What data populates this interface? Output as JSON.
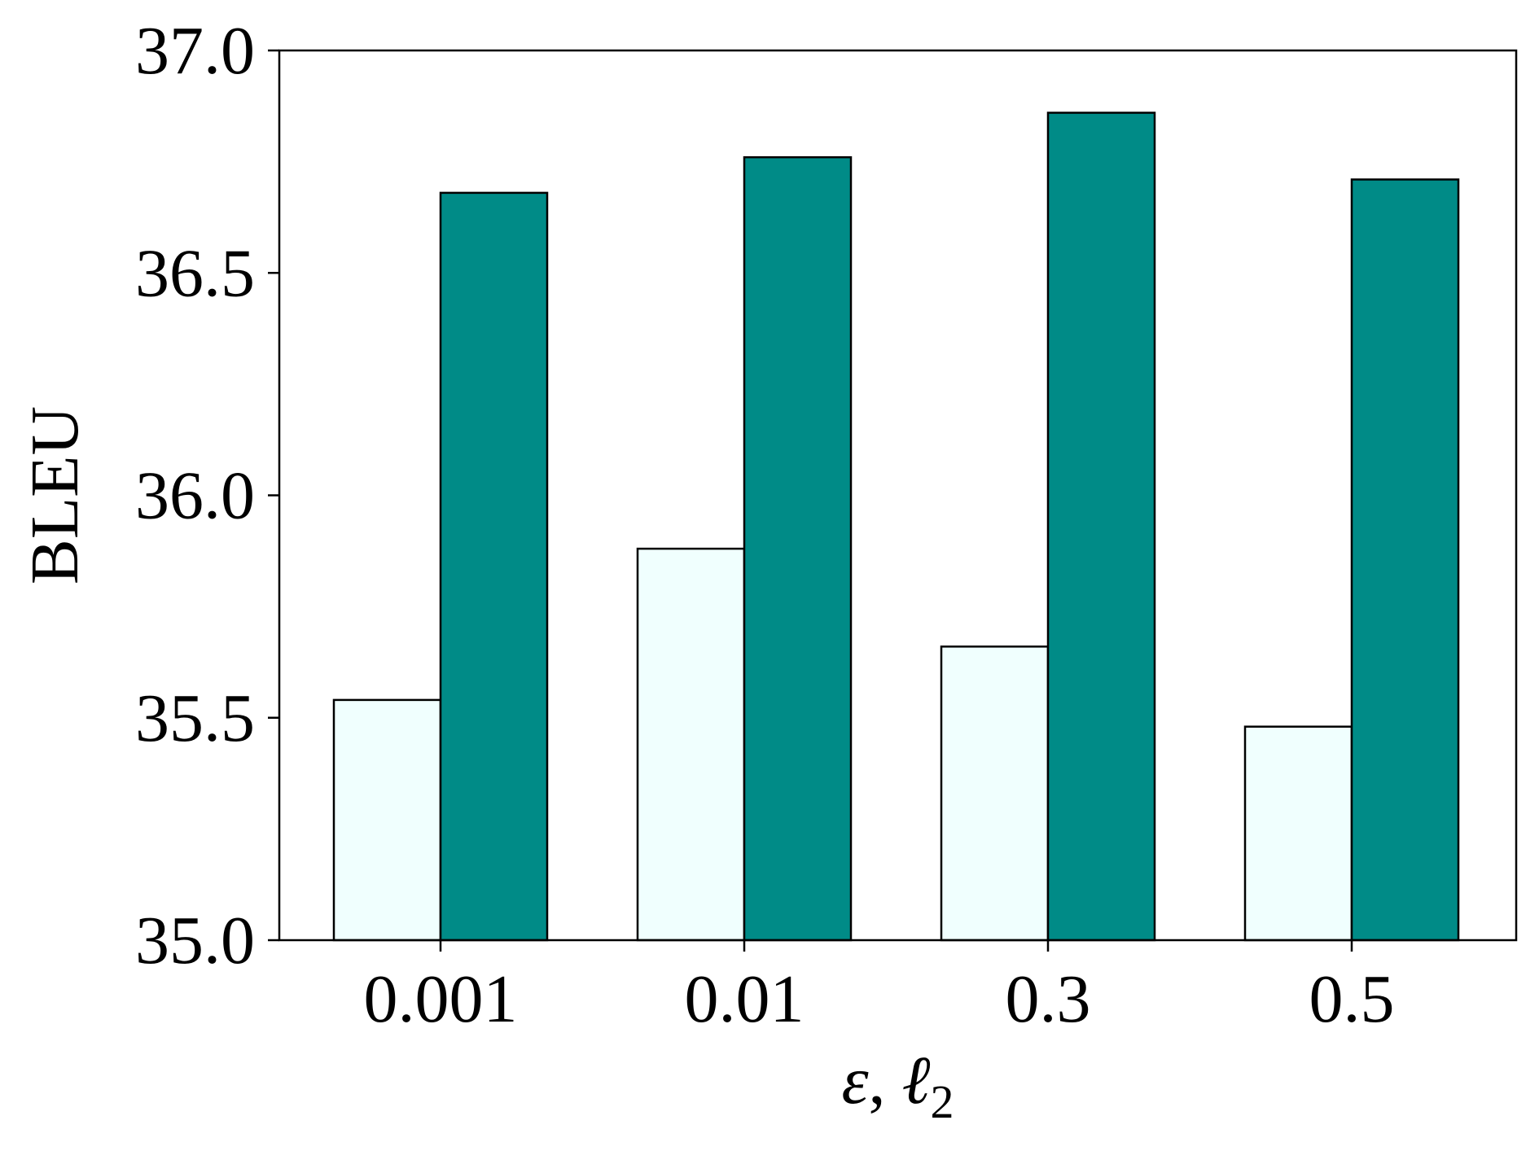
{
  "chart_data": {
    "type": "bar",
    "title": "",
    "xlabel": "ε, ℓ₂",
    "xlabel_parts": {
      "symbol": "ε",
      "separator": ",",
      "symbol2": "ℓ",
      "subscript": "2"
    },
    "ylabel": "BLEU",
    "categories": [
      "0.001",
      "0.01",
      "0.3",
      "0.5"
    ],
    "series": [
      {
        "values": [
          35.54,
          35.88,
          35.66,
          35.48
        ],
        "color": "#f0fffe"
      },
      {
        "values": [
          36.68,
          36.76,
          36.86,
          36.71
        ],
        "color": "#008b87"
      }
    ],
    "ylim": [
      35.0,
      37.0
    ],
    "yticks": [
      "35.0",
      "35.5",
      "36.0",
      "36.5",
      "37.0"
    ],
    "grid": false,
    "legend": "none",
    "edge_color": "#000000"
  }
}
